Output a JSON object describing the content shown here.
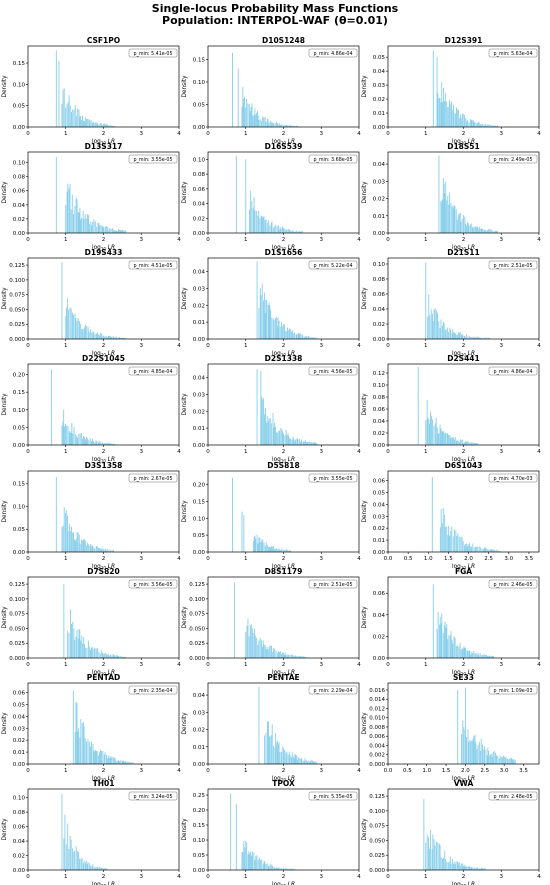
{
  "figure": {
    "title_line1": "Single-locus Probability Mass Functions",
    "title_line2": "Population: INTERPOL-WAF (θ=0.01)",
    "bar_color": "#87CEEB",
    "xlabel": "log10 LR",
    "ylabel": "Density"
  },
  "chart_data": [
    {
      "type": "bar",
      "title": "CSF1PO",
      "annotation": "p_min: 5.41e-05",
      "xlim": [
        0,
        4
      ],
      "xticks": [
        "0",
        "1",
        "2",
        "3",
        "4"
      ],
      "yticks": [
        "0.00",
        "0.05",
        "0.10",
        "0.15"
      ],
      "ylim": [
        0,
        0.19
      ],
      "spike_positions": [
        0.75,
        0.82
      ],
      "spike_values": [
        0.18,
        0.155
      ],
      "peak_x": 0.9,
      "peak_y": 0.12,
      "decay": 0.42,
      "tail_end": 2.3
    },
    {
      "type": "bar",
      "title": "D10S1248",
      "annotation": "p_min: 4.86e-04",
      "xlim": [
        0,
        4
      ],
      "xticks": [
        "0",
        "1",
        "2",
        "3",
        "4"
      ],
      "yticks": [
        "0.00",
        "0.05",
        "0.10",
        "0.15"
      ],
      "ylim": [
        0,
        0.18
      ],
      "spike_positions": [
        0.65,
        0.8
      ],
      "spike_values": [
        0.165,
        0.13
      ],
      "peak_x": 0.9,
      "peak_y": 0.1,
      "decay": 0.42,
      "tail_end": 2.4
    },
    {
      "type": "bar",
      "title": "D12S391",
      "annotation": "p_min: 5.63e-04",
      "xlim": [
        0,
        4
      ],
      "xticks": [
        "0",
        "1",
        "2",
        "3",
        "4"
      ],
      "yticks": [
        "0.00",
        "0.01",
        "0.02",
        "0.03",
        "0.04",
        "0.05"
      ],
      "ylim": [
        0,
        0.058
      ],
      "spike_positions": [
        1.2,
        1.3
      ],
      "spike_values": [
        0.055,
        0.05
      ],
      "peak_x": 1.3,
      "peak_y": 0.045,
      "decay": 0.45,
      "tail_end": 2.9
    },
    {
      "type": "bar",
      "title": "D13S317",
      "annotation": "p_min: 3.55e-05",
      "xlim": [
        0,
        4
      ],
      "xticks": [
        "0",
        "1",
        "2",
        "3",
        "4"
      ],
      "yticks": [
        "0.00",
        "0.02",
        "0.04",
        "0.06",
        "0.08",
        "0.10"
      ],
      "ylim": [
        0,
        0.115
      ],
      "spike_positions": [
        0.75
      ],
      "spike_values": [
        0.108
      ],
      "peak_x": 1.0,
      "peak_y": 0.088,
      "decay": 0.5,
      "tail_end": 2.6
    },
    {
      "type": "bar",
      "title": "D16S539",
      "annotation": "p_min: 3.68e-05",
      "xlim": [
        0,
        4
      ],
      "xticks": [
        "0",
        "1",
        "2",
        "3",
        "4"
      ],
      "yticks": [
        "0.00",
        "0.02",
        "0.04",
        "0.06",
        "0.08",
        "0.10"
      ],
      "ylim": [
        0,
        0.11
      ],
      "spike_positions": [
        0.75,
        1.0
      ],
      "spike_values": [
        0.105,
        0.1
      ],
      "peak_x": 1.1,
      "peak_y": 0.07,
      "decay": 0.42,
      "tail_end": 2.5
    },
    {
      "type": "bar",
      "title": "D18S51",
      "annotation": "p_min: 2.49e-05",
      "xlim": [
        0,
        4
      ],
      "xticks": [
        "0",
        "1",
        "2",
        "3",
        "4"
      ],
      "yticks": [
        "0.00",
        "0.01",
        "0.02",
        "0.03",
        "0.04"
      ],
      "ylim": [
        0,
        0.047
      ],
      "spike_positions": [
        1.35
      ],
      "spike_values": [
        0.045
      ],
      "peak_x": 1.4,
      "peak_y": 0.04,
      "decay": 0.45,
      "tail_end": 2.9
    },
    {
      "type": "bar",
      "title": "D19S433",
      "annotation": "p_min: 4.51e-05",
      "xlim": [
        0,
        4
      ],
      "xticks": [
        "0",
        "1",
        "2",
        "3",
        "4"
      ],
      "yticks": [
        "0.000",
        "0.025",
        "0.050",
        "0.075",
        "0.100",
        "0.125"
      ],
      "ylim": [
        0,
        0.137
      ],
      "spike_positions": [
        0.9
      ],
      "spike_values": [
        0.13
      ],
      "peak_x": 1.0,
      "peak_y": 0.085,
      "decay": 0.45,
      "tail_end": 2.6
    },
    {
      "type": "bar",
      "title": "D1S1656",
      "annotation": "p_min: 5.22e-04",
      "xlim": [
        0,
        4
      ],
      "xticks": [
        "0",
        "1",
        "2",
        "3",
        "4"
      ],
      "yticks": [
        "0.00",
        "0.01",
        "0.02",
        "0.03",
        "0.04"
      ],
      "ylim": [
        0,
        0.048
      ],
      "spike_positions": [
        1.3
      ],
      "spike_values": [
        0.046
      ],
      "peak_x": 1.35,
      "peak_y": 0.04,
      "decay": 0.45,
      "tail_end": 2.9
    },
    {
      "type": "bar",
      "title": "D21S11",
      "annotation": "p_min: 2.51e-05",
      "xlim": [
        0,
        4
      ],
      "xticks": [
        "0",
        "1",
        "2",
        "3",
        "4"
      ],
      "yticks": [
        "0.00",
        "0.02",
        "0.04",
        "0.06",
        "0.08",
        "0.10"
      ],
      "ylim": [
        0,
        0.108
      ],
      "spike_positions": [
        1.0
      ],
      "spike_values": [
        0.102
      ],
      "peak_x": 1.05,
      "peak_y": 0.065,
      "decay": 0.45,
      "tail_end": 2.7
    },
    {
      "type": "bar",
      "title": "D22S1045",
      "annotation": "p_min: 4.85e-04",
      "xlim": [
        0,
        4
      ],
      "xticks": [
        "0",
        "1",
        "2",
        "3",
        "4"
      ],
      "yticks": [
        "0.00",
        "0.05",
        "0.10",
        "0.15",
        "0.20"
      ],
      "ylim": [
        0,
        0.23
      ],
      "spike_positions": [
        0.62
      ],
      "spike_values": [
        0.215
      ],
      "peak_x": 0.9,
      "peak_y": 0.12,
      "decay": 0.42,
      "tail_end": 2.3
    },
    {
      "type": "bar",
      "title": "D2S1338",
      "annotation": "p_min: 4.56e-05",
      "xlim": [
        0,
        4
      ],
      "xticks": [
        "0",
        "1",
        "2",
        "3",
        "4"
      ],
      "yticks": [
        "0.00",
        "0.01",
        "0.02",
        "0.03",
        "0.04"
      ],
      "ylim": [
        0,
        0.048
      ],
      "spike_positions": [
        1.3,
        1.4
      ],
      "spike_values": [
        0.045,
        0.044
      ],
      "peak_x": 1.4,
      "peak_y": 0.04,
      "decay": 0.45,
      "tail_end": 2.9
    },
    {
      "type": "bar",
      "title": "D2S441",
      "annotation": "p_min: 4.86e-04",
      "xlim": [
        0,
        4
      ],
      "xticks": [
        "0",
        "1",
        "2",
        "3",
        "4"
      ],
      "yticks": [
        "0.00",
        "0.02",
        "0.04",
        "0.06",
        "0.08",
        "0.10",
        "0.12"
      ],
      "ylim": [
        0,
        0.135
      ],
      "spike_positions": [
        0.8
      ],
      "spike_values": [
        0.13
      ],
      "peak_x": 1.0,
      "peak_y": 0.09,
      "decay": 0.42,
      "tail_end": 2.4
    },
    {
      "type": "bar",
      "title": "D3S1358",
      "annotation": "p_min: 2.67e-05",
      "xlim": [
        0,
        4
      ],
      "xticks": [
        "0",
        "1",
        "2",
        "3",
        "4"
      ],
      "yticks": [
        "0.00",
        "0.05",
        "0.10",
        "0.15"
      ],
      "ylim": [
        0,
        0.178
      ],
      "spike_positions": [
        0.75
      ],
      "spike_values": [
        0.165
      ],
      "peak_x": 0.9,
      "peak_y": 0.12,
      "decay": 0.42,
      "tail_end": 2.3
    },
    {
      "type": "bar",
      "title": "D5S818",
      "annotation": "p_min: 3.55e-05",
      "xlim": [
        0,
        4
      ],
      "xticks": [
        "0",
        "1",
        "2",
        "3",
        "4"
      ],
      "yticks": [
        "0.00",
        "0.05",
        "0.10",
        "0.15",
        "0.20"
      ],
      "ylim": [
        0,
        0.24
      ],
      "spike_positions": [
        0.65,
        0.9,
        0.95
      ],
      "spike_values": [
        0.22,
        0.12,
        0.11
      ],
      "peak_x": 1.2,
      "peak_y": 0.07,
      "decay": 0.4,
      "tail_end": 2.2
    },
    {
      "type": "bar",
      "title": "D6S1043",
      "annotation": "p_min: 4.70e-03",
      "xlim": [
        0,
        3.75
      ],
      "xticks": [
        "0.0",
        "0.5",
        "1.0",
        "1.5",
        "2.0",
        "2.5",
        "3.0",
        "3.5"
      ],
      "yticks": [
        "0.00",
        "0.01",
        "0.02",
        "0.03",
        "0.04",
        "0.05",
        "0.06"
      ],
      "ylim": [
        0,
        0.068
      ],
      "spike_positions": [
        1.1
      ],
      "spike_values": [
        0.063
      ],
      "peak_x": 1.3,
      "peak_y": 0.045,
      "decay": 0.45,
      "tail_end": 2.8
    },
    {
      "type": "bar",
      "title": "D7S820",
      "annotation": "p_min: 3.56e-05",
      "xlim": [
        0,
        4
      ],
      "xticks": [
        "0",
        "1",
        "2",
        "3",
        "4"
      ],
      "yticks": [
        "0.000",
        "0.025",
        "0.050",
        "0.075",
        "0.100",
        "0.125"
      ],
      "ylim": [
        0,
        0.137
      ],
      "spike_positions": [
        0.95
      ],
      "spike_values": [
        0.125
      ],
      "peak_x": 1.05,
      "peak_y": 0.1,
      "decay": 0.45,
      "tail_end": 2.6
    },
    {
      "type": "bar",
      "title": "D8S1179",
      "annotation": "p_min: 2.51e-05",
      "xlim": [
        0,
        4
      ],
      "xticks": [
        "0",
        "1",
        "2",
        "3",
        "4"
      ],
      "yticks": [
        "0.000",
        "0.025",
        "0.050",
        "0.075",
        "0.100",
        "0.125"
      ],
      "ylim": [
        0,
        0.137
      ],
      "spike_positions": [
        0.7
      ],
      "spike_values": [
        0.127
      ],
      "peak_x": 1.0,
      "peak_y": 0.095,
      "decay": 0.45,
      "tail_end": 2.6
    },
    {
      "type": "bar",
      "title": "FGA",
      "annotation": "p_min: 2.46e-05",
      "xlim": [
        0,
        4
      ],
      "xticks": [
        "0",
        "1",
        "2",
        "3",
        "4"
      ],
      "yticks": [
        "0.00",
        "0.02",
        "0.04",
        "0.06"
      ],
      "ylim": [
        0,
        0.075
      ],
      "spike_positions": [
        1.2
      ],
      "spike_values": [
        0.068
      ],
      "peak_x": 1.3,
      "peak_y": 0.058,
      "decay": 0.45,
      "tail_end": 2.8
    },
    {
      "type": "bar",
      "title": "PENTAD",
      "annotation": "p_min: 2.35e-04",
      "xlim": [
        0,
        4
      ],
      "xticks": [
        "0",
        "1",
        "2",
        "3",
        "4"
      ],
      "yticks": [
        "0.00",
        "0.01",
        "0.02",
        "0.03",
        "0.04",
        "0.05",
        "0.06"
      ],
      "ylim": [
        0,
        0.068
      ],
      "spike_positions": [
        1.2
      ],
      "spike_values": [
        0.062
      ],
      "peak_x": 1.25,
      "peak_y": 0.058,
      "decay": 0.45,
      "tail_end": 2.8
    },
    {
      "type": "bar",
      "title": "PENTAE",
      "annotation": "p_min: 2.29e-04",
      "xlim": [
        0,
        4
      ],
      "xticks": [
        "0",
        "1",
        "2",
        "3",
        "4"
      ],
      "yticks": [
        "0.00",
        "0.01",
        "0.02",
        "0.03",
        "0.04"
      ],
      "ylim": [
        0,
        0.047
      ],
      "spike_positions": [
        1.35
      ],
      "spike_values": [
        0.045
      ],
      "peak_x": 1.5,
      "peak_y": 0.036,
      "decay": 0.45,
      "tail_end": 2.9
    },
    {
      "type": "bar",
      "title": "SE33",
      "annotation": "p_min: 1.09e-03",
      "xlim": [
        0,
        3.9
      ],
      "xticks": [
        "0.0",
        "0.5",
        "1.0",
        "1.5",
        "2.0",
        "2.5",
        "3.0",
        "3.5"
      ],
      "yticks": [
        "0.000",
        "0.002",
        "0.004",
        "0.006",
        "0.008",
        "0.010",
        "0.012",
        "0.014",
        "0.016"
      ],
      "ylim": [
        0,
        0.0175
      ],
      "spike_positions": [
        1.8,
        2.0
      ],
      "spike_values": [
        0.016,
        0.0165
      ],
      "peak_x": 1.9,
      "peak_y": 0.014,
      "decay": 0.55,
      "tail_end": 3.3
    },
    {
      "type": "bar",
      "title": "TH01",
      "annotation": "p_min: 3.24e-05",
      "xlim": [
        0,
        4
      ],
      "xticks": [
        "0",
        "1",
        "2",
        "3",
        "4"
      ],
      "yticks": [
        "0.00",
        "0.02",
        "0.04",
        "0.06",
        "0.08",
        "0.10"
      ],
      "ylim": [
        0,
        0.112
      ],
      "spike_positions": [
        0.9
      ],
      "spike_values": [
        0.105
      ],
      "peak_x": 0.95,
      "peak_y": 0.095,
      "decay": 0.32,
      "tail_end": 2.1
    },
    {
      "type": "bar",
      "title": "TPOX",
      "annotation": "p_min: 5.35e-05",
      "xlim": [
        0,
        4
      ],
      "xticks": [
        "0",
        "1",
        "2",
        "3",
        "4"
      ],
      "yticks": [
        "0.00",
        "0.05",
        "0.10",
        "0.15",
        "0.20",
        "0.25"
      ],
      "ylim": [
        0,
        0.27
      ],
      "spike_positions": [
        0.6,
        0.75
      ],
      "spike_values": [
        0.255,
        0.22
      ],
      "peak_x": 0.9,
      "peak_y": 0.13,
      "decay": 0.42,
      "tail_end": 2.3
    },
    {
      "type": "bar",
      "title": "VWA",
      "annotation": "p_min: 2.48e-05",
      "xlim": [
        0,
        4
      ],
      "xticks": [
        "0",
        "1",
        "2",
        "3",
        "4"
      ],
      "yticks": [
        "0.000",
        "0.025",
        "0.050",
        "0.075",
        "0.100",
        "0.125"
      ],
      "ylim": [
        0,
        0.137
      ],
      "spike_positions": [
        0.95
      ],
      "spike_values": [
        0.12
      ],
      "peak_x": 1.0,
      "peak_y": 0.1,
      "decay": 0.45,
      "tail_end": 2.6
    }
  ]
}
